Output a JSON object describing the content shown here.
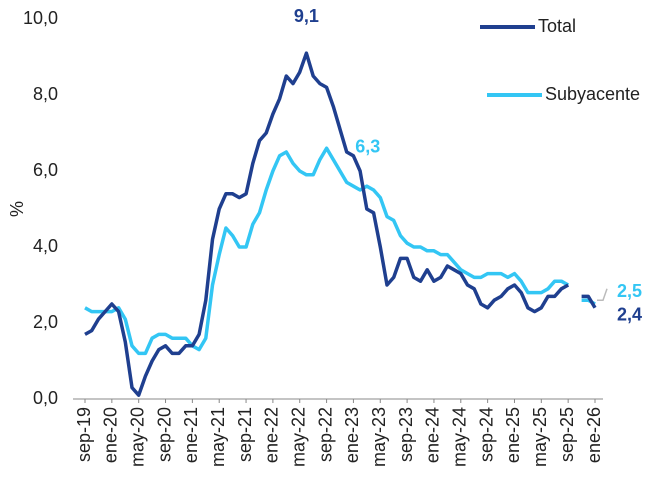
{
  "chart_data": {
    "type": "line",
    "y_label": "%",
    "categories": [
      "sep-19",
      null,
      null,
      null,
      "ene-20",
      null,
      null,
      null,
      "may-20",
      null,
      null,
      null,
      "sep-20",
      null,
      null,
      null,
      "ene-21",
      null,
      null,
      null,
      "may-21",
      null,
      null,
      null,
      "sep-21",
      null,
      null,
      null,
      "ene-22",
      null,
      null,
      null,
      "may-22",
      null,
      null,
      null,
      "sep-22",
      null,
      null,
      null,
      "ene-23",
      null,
      null,
      null,
      "may-23",
      null,
      null,
      null,
      "sep-23",
      null,
      null,
      null,
      "ene-24",
      null,
      null,
      null,
      "may-24",
      null,
      null,
      null,
      "sep-24",
      null,
      null,
      null,
      "ene-25",
      null,
      null,
      null,
      "may-25",
      null,
      null,
      null,
      "sep-25",
      null,
      null,
      null,
      "ene-26"
    ],
    "series": [
      {
        "name": "Total",
        "color": "#1f3f8f",
        "values": [
          1.7,
          1.8,
          2.1,
          2.3,
          2.5,
          2.3,
          1.5,
          0.3,
          0.1,
          0.6,
          1.0,
          1.3,
          1.4,
          1.2,
          1.2,
          1.4,
          1.4,
          1.7,
          2.6,
          4.2,
          5.0,
          5.4,
          5.4,
          5.3,
          5.4,
          6.2,
          6.8,
          7.0,
          7.5,
          7.9,
          8.5,
          8.3,
          8.6,
          9.1,
          8.5,
          8.3,
          8.2,
          7.7,
          7.1,
          6.5,
          6.4,
          6.0,
          5.0,
          4.9,
          4.0,
          3.0,
          3.2,
          3.7,
          3.7,
          3.2,
          3.1,
          3.4,
          3.1,
          3.2,
          3.5,
          3.4,
          3.3,
          3.0,
          2.9,
          2.5,
          2.4,
          2.6,
          2.7,
          2.9,
          3.0,
          2.8,
          2.4,
          2.3,
          2.4,
          2.7,
          2.7,
          2.9,
          3.0,
          null,
          2.7,
          2.7,
          2.4
        ]
      },
      {
        "name": "Subyacente",
        "color": "#33c6f4",
        "values": [
          2.4,
          2.3,
          2.3,
          2.3,
          2.3,
          2.4,
          2.1,
          1.4,
          1.2,
          1.2,
          1.6,
          1.7,
          1.7,
          1.6,
          1.6,
          1.6,
          1.4,
          1.3,
          1.6,
          3.0,
          3.8,
          4.5,
          4.3,
          4.0,
          4.0,
          4.6,
          4.9,
          5.5,
          6.0,
          6.4,
          6.5,
          6.2,
          6.0,
          5.9,
          5.9,
          6.3,
          6.6,
          6.3,
          6.0,
          5.7,
          5.6,
          5.5,
          5.6,
          5.5,
          5.3,
          4.8,
          4.7,
          4.3,
          4.1,
          4.0,
          4.0,
          3.9,
          3.9,
          3.8,
          3.8,
          3.6,
          3.4,
          3.3,
          3.2,
          3.2,
          3.3,
          3.3,
          3.3,
          3.2,
          3.3,
          3.1,
          2.8,
          2.8,
          2.8,
          2.9,
          3.1,
          3.1,
          3.0,
          null,
          2.6,
          2.6,
          2.5
        ]
      }
    ],
    "annotations": [
      {
        "label": "9,1",
        "series": 0,
        "index": 33
      },
      {
        "label": "6,3",
        "series": 1,
        "index": 37
      },
      {
        "label": "2,5",
        "series": 1,
        "index": 76
      },
      {
        "label": "2,4",
        "series": 0,
        "index": 76
      }
    ],
    "ylim": [
      0,
      10
    ],
    "yticks": [
      {
        "value": 0,
        "label": "0,0"
      },
      {
        "value": 2,
        "label": "2,0"
      },
      {
        "value": 4,
        "label": "4,0"
      },
      {
        "value": 6,
        "label": "6,0"
      },
      {
        "value": 8,
        "label": "8,0"
      },
      {
        "value": 10,
        "label": "10,0"
      }
    ],
    "grid": false,
    "legend": "upper right"
  }
}
